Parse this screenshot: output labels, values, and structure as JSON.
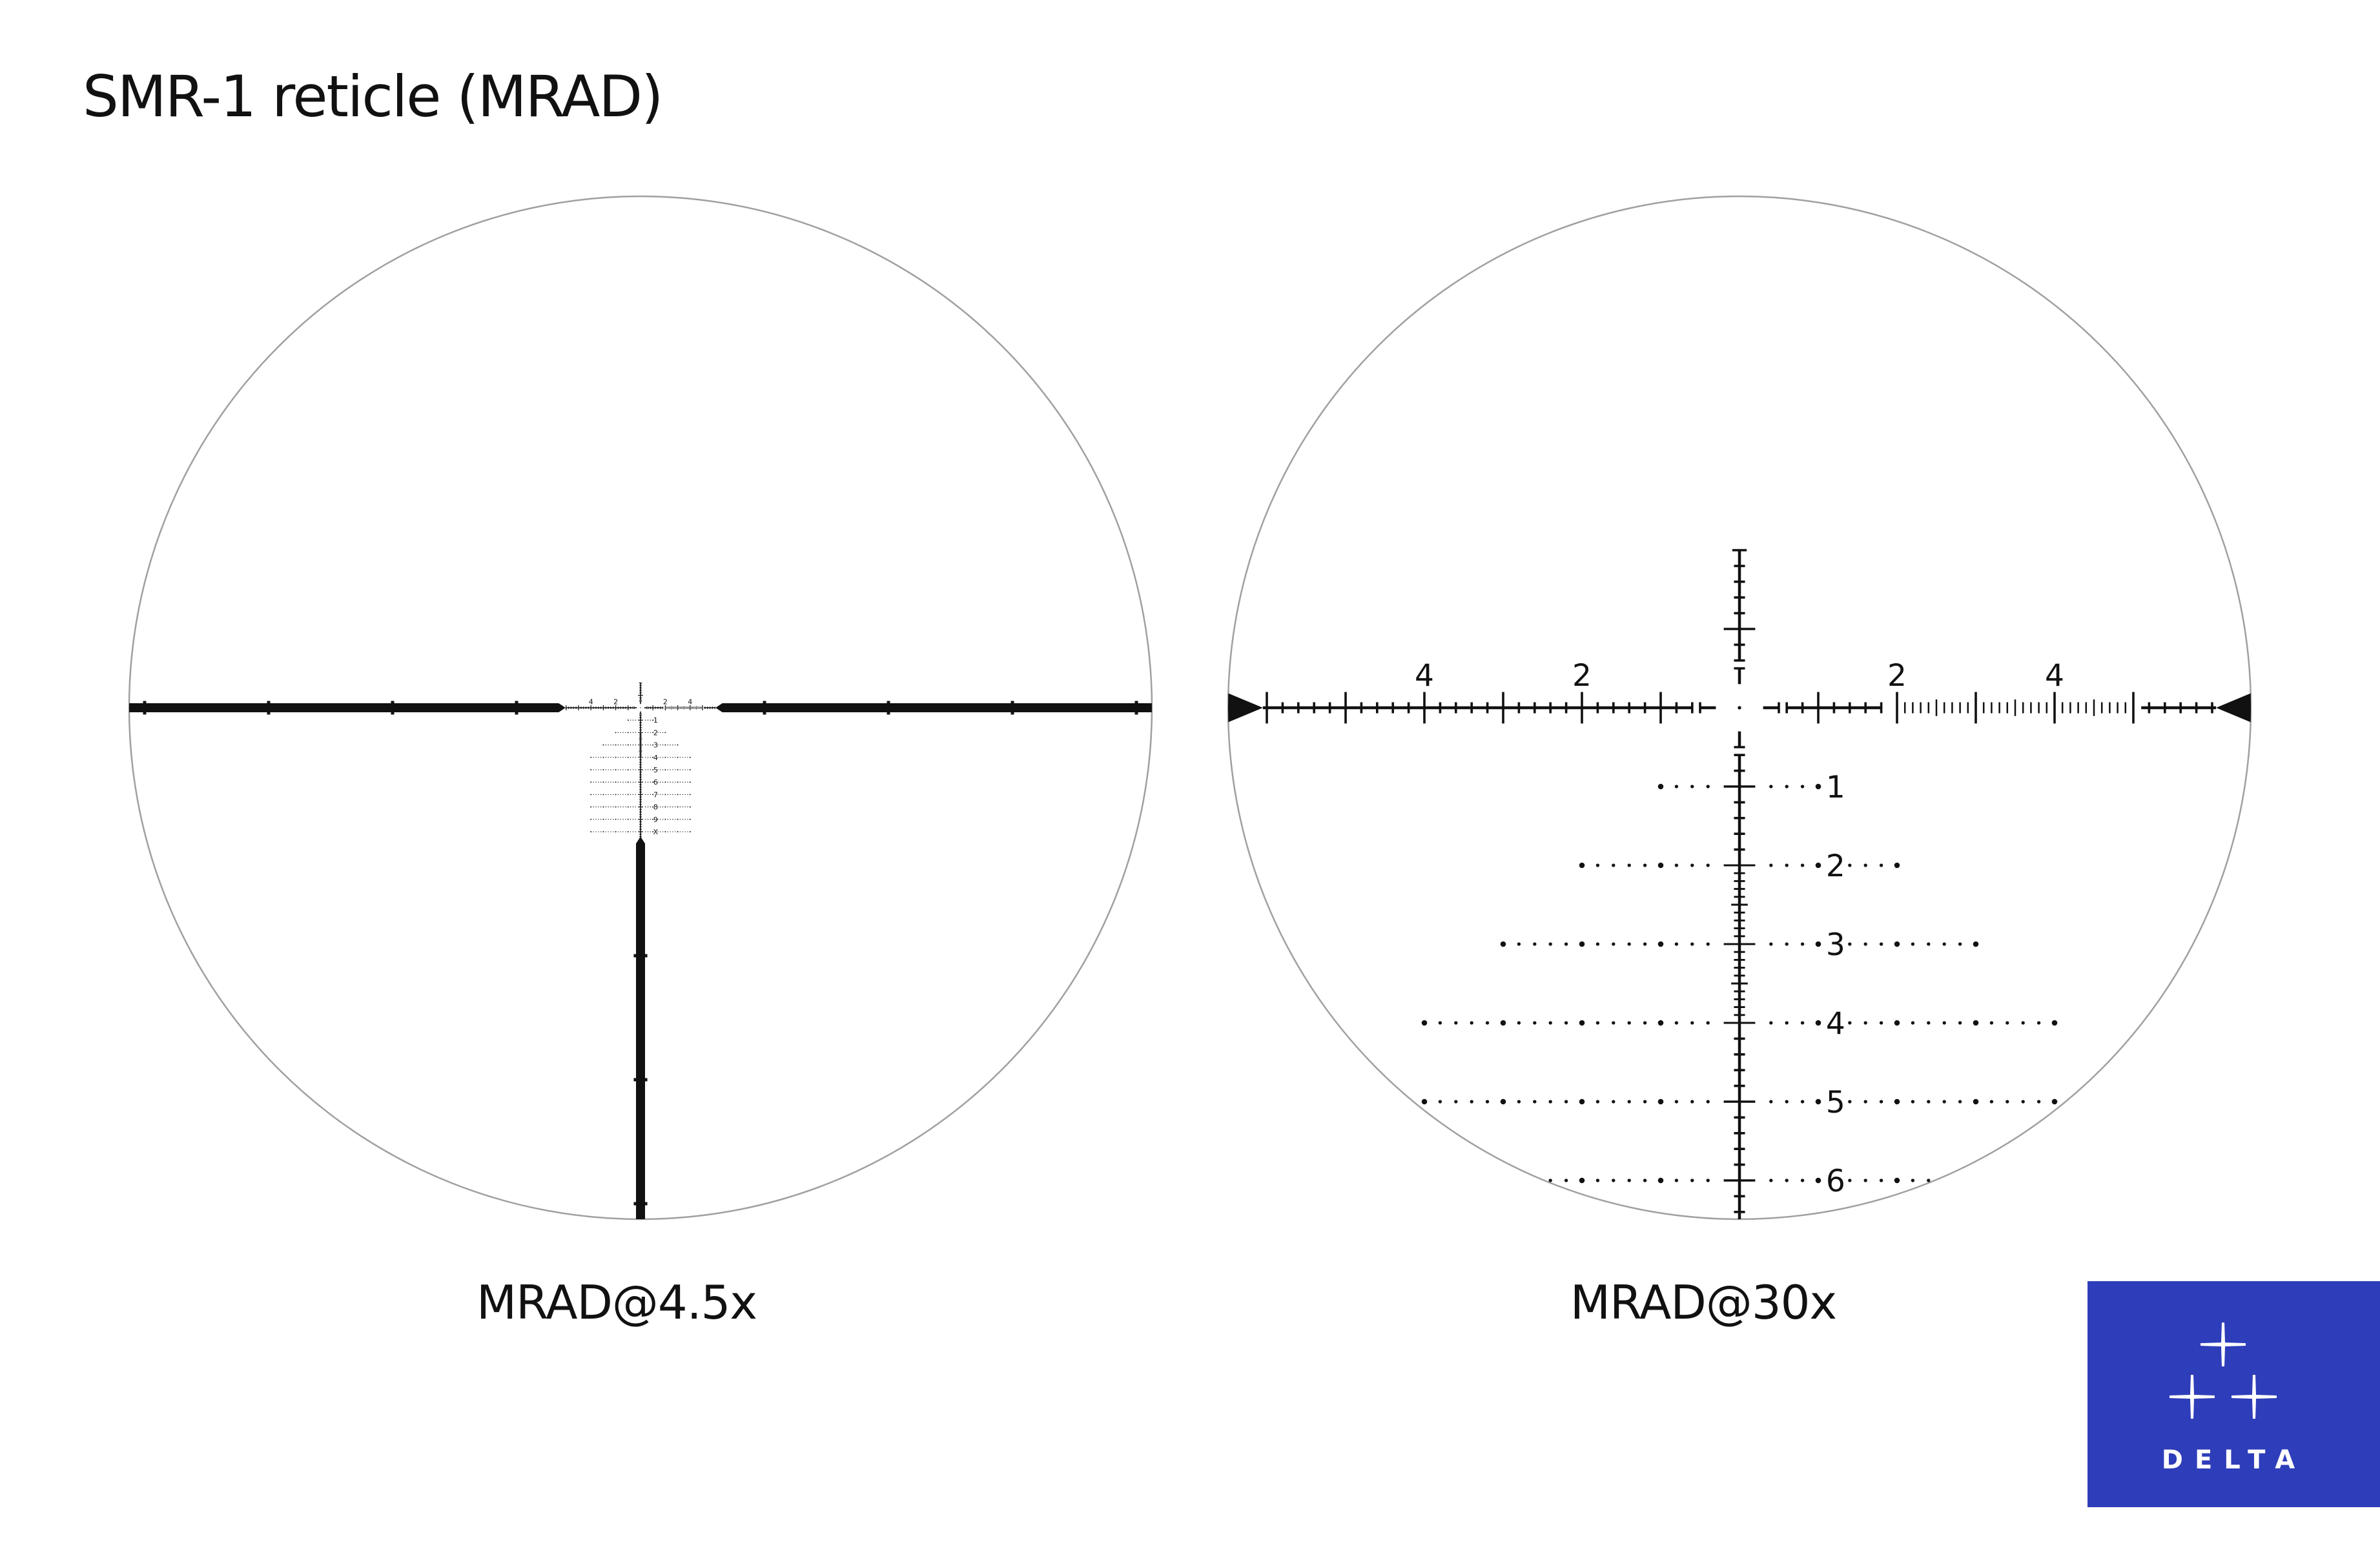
{
  "title": "SMR-1 reticle (MRAD)",
  "reticle": {
    "windage_labels": [
      "4",
      "2",
      "2",
      "4"
    ],
    "hold_labels": [
      "1",
      "2",
      "3",
      "4",
      "5",
      "6",
      "7",
      "8",
      "9",
      "X"
    ]
  },
  "views": [
    {
      "caption": "MRAD@4.5x",
      "magnification": 4.5
    },
    {
      "caption": "MRAD@30x",
      "magnification": 30
    }
  ],
  "logo": {
    "text": "DELTA",
    "background": "#2e3db9",
    "foreground": "#ffffff"
  },
  "colors": {
    "reticle": "#111111",
    "circle": "#a0a0a0"
  }
}
